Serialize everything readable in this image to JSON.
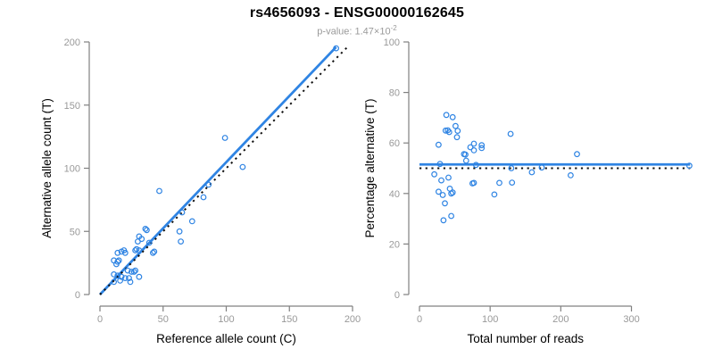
{
  "header": {
    "title": "rs4656093 - ENSG00000162645",
    "p_value_prefix": "p-value: 1.47×10",
    "p_value_exponent": "-2"
  },
  "colors": {
    "point_blue": "#2F84E3",
    "line_blue": "#2F84E3",
    "dotted_black": "#111111",
    "axis_gray": "#808080",
    "tick_label_gray": "#999999",
    "axis_title_black": "#000000",
    "subtitle_gray": "#9a9a9a",
    "background": "#ffffff"
  },
  "chart_data": [
    {
      "id": "left",
      "type": "scatter",
      "xlabel": "Reference allele count (C)",
      "ylabel": "Alternative allele count (T)",
      "xlim": [
        0,
        200
      ],
      "ylim": [
        0,
        200
      ],
      "xticks": [
        0,
        50,
        100,
        150,
        200
      ],
      "yticks": [
        0,
        50,
        100,
        150,
        200
      ],
      "grid": false,
      "legend": "none",
      "marker": "open-circle",
      "points": [
        [
          187,
          195
        ],
        [
          113,
          101
        ],
        [
          99,
          124
        ],
        [
          86,
          87
        ],
        [
          82,
          77
        ],
        [
          73,
          58
        ],
        [
          65,
          65
        ],
        [
          64,
          42
        ],
        [
          63,
          50
        ],
        [
          47,
          82
        ],
        [
          43,
          34
        ],
        [
          42,
          33
        ],
        [
          39,
          41
        ],
        [
          37,
          51
        ],
        [
          36,
          52
        ],
        [
          33,
          44
        ],
        [
          31,
          46
        ],
        [
          30,
          42
        ],
        [
          31,
          35
        ],
        [
          29,
          36
        ],
        [
          28,
          35
        ],
        [
          20,
          33
        ],
        [
          19,
          35
        ],
        [
          17,
          34
        ],
        [
          14,
          33
        ],
        [
          15,
          27
        ],
        [
          14,
          26
        ],
        [
          13,
          24
        ],
        [
          11,
          27
        ],
        [
          22,
          19
        ],
        [
          25,
          18
        ],
        [
          27,
          18
        ],
        [
          28,
          19
        ],
        [
          11,
          16
        ],
        [
          14,
          15
        ],
        [
          17,
          14
        ],
        [
          20,
          13
        ],
        [
          23,
          13
        ],
        [
          31,
          14
        ],
        [
          24,
          10
        ],
        [
          11,
          10
        ],
        [
          16,
          11
        ]
      ],
      "lines": [
        {
          "name": "fit-line",
          "from": [
            0,
            0
          ],
          "to": [
            187,
            196
          ],
          "style": "solid",
          "color": "blue"
        },
        {
          "name": "identity-line",
          "from": [
            0,
            0
          ],
          "to": [
            196,
            196
          ],
          "style": "dotted",
          "color": "black"
        }
      ]
    },
    {
      "id": "right",
      "type": "scatter",
      "xlabel": "Total number of reads",
      "ylabel": "Percentage alternative (T)",
      "xlim": [
        0,
        383
      ],
      "ylim": [
        0,
        100
      ],
      "xticks": [
        0,
        100,
        200,
        300
      ],
      "yticks": [
        0,
        20,
        40,
        60,
        80,
        100
      ],
      "grid": false,
      "legend": "none",
      "marker": "open-circle",
      "derivation": "x = C+T (total reads), y = 100*T/(C+T) (percentage alternative)",
      "points": [
        [
          382,
          51.0
        ],
        [
          214,
          47.2
        ],
        [
          223,
          55.6
        ],
        [
          173,
          50.3
        ],
        [
          159,
          48.4
        ],
        [
          131,
          44.3
        ],
        [
          130,
          50.0
        ],
        [
          106,
          39.6
        ],
        [
          113,
          44.2
        ],
        [
          129,
          63.6
        ],
        [
          77,
          44.2
        ],
        [
          75,
          44.0
        ],
        [
          80,
          51.3
        ],
        [
          88,
          58.0
        ],
        [
          88,
          59.1
        ],
        [
          77,
          57.1
        ],
        [
          77,
          59.7
        ],
        [
          72,
          58.3
        ],
        [
          66,
          53.0
        ],
        [
          65,
          55.4
        ],
        [
          63,
          55.6
        ],
        [
          53,
          62.3
        ],
        [
          54,
          64.8
        ],
        [
          51,
          66.7
        ],
        [
          47,
          70.2
        ],
        [
          42,
          64.3
        ],
        [
          40,
          65.0
        ],
        [
          37,
          64.9
        ],
        [
          38,
          71.1
        ],
        [
          41,
          46.3
        ],
        [
          43,
          41.9
        ],
        [
          45,
          40.0
        ],
        [
          47,
          40.4
        ],
        [
          27,
          59.3
        ],
        [
          29,
          51.7
        ],
        [
          31,
          45.2
        ],
        [
          33,
          39.4
        ],
        [
          36,
          36.1
        ],
        [
          45,
          31.1
        ],
        [
          34,
          29.4
        ],
        [
          21,
          47.6
        ],
        [
          27,
          40.7
        ]
      ],
      "lines": [
        {
          "name": "mean-line",
          "from": [
            0,
            51.5
          ],
          "to": [
            383,
            51.5
          ],
          "style": "solid",
          "color": "blue"
        },
        {
          "name": "null-line",
          "from": [
            0,
            50
          ],
          "to": [
            383,
            50
          ],
          "style": "dotted",
          "color": "black"
        }
      ]
    }
  ]
}
